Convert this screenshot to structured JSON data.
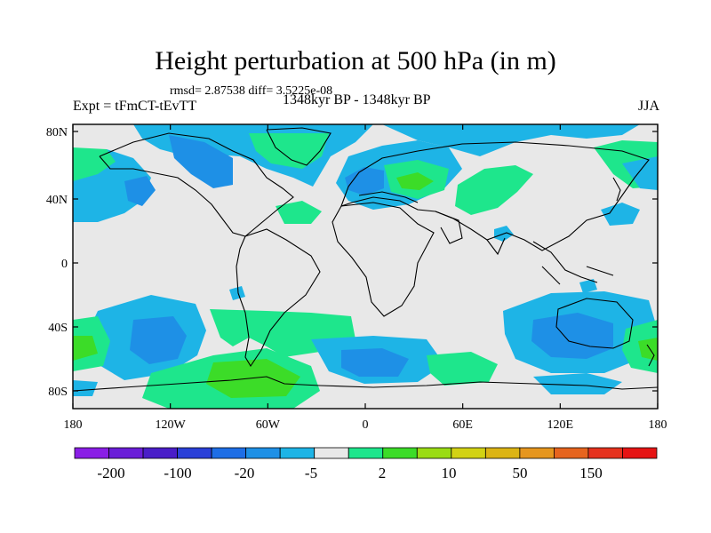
{
  "header": {
    "title": "Height perturbation at 500 hPa (in m)",
    "stats": "rmsd= 2.87538 diff= 3.5225e-08",
    "left_label": "Expt = tFmCT-tEvTT",
    "center_label": "1348kyr BP - 1348kyr BP",
    "right_label": "JJA"
  },
  "map": {
    "lon_ticks": [
      "180",
      "120W",
      "60W",
      "0",
      "60E",
      "120E",
      "180"
    ],
    "lat_ticks": [
      "80N",
      "40N",
      "0",
      "40S",
      "80S"
    ],
    "background_color": "#e8e8e8"
  },
  "colorbar": {
    "colors": [
      "#8a1ee6",
      "#6a1ed8",
      "#4a1ec8",
      "#2a40d8",
      "#1e6ee6",
      "#1e90e6",
      "#1eb4e6",
      "#e8e8e8",
      "#1ee68c",
      "#3cdc28",
      "#9adc14",
      "#d2d214",
      "#dcb414",
      "#e6961e",
      "#e6641e",
      "#e6321e",
      "#e61414"
    ],
    "labels": [
      "-200",
      "-100",
      "-20",
      "-5",
      "2",
      "10",
      "50",
      "150"
    ]
  }
}
